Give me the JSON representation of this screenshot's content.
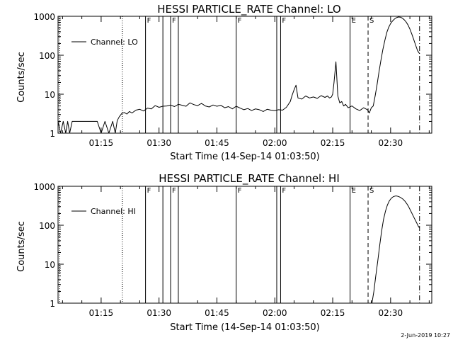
{
  "footer": {
    "timestamp": "2-Jun-2019 10:27"
  },
  "chart_data": [
    {
      "type": "line",
      "title": "HESSI PARTICLE_RATE Channel: LO",
      "xlabel": "Start Time (14-Sep-14 01:03:50)",
      "ylabel": "Counts/sec",
      "yscale": "log",
      "xlim": [
        "01:03:50",
        "02:40:40"
      ],
      "ylim": [
        1,
        1000
      ],
      "xticks": [
        "01:15",
        "01:30",
        "01:45",
        "02:00",
        "02:15",
        "02:30"
      ],
      "yticks": [
        "1",
        "10",
        "100",
        "1000"
      ],
      "legend": {
        "label": "Channel: LO",
        "position": "top-left"
      },
      "grid": false,
      "markers": [
        {
          "time": "01:04:15",
          "style": "dotted",
          "label": ""
        },
        {
          "time": "01:20:30",
          "style": "dotted",
          "label": ""
        },
        {
          "time": "01:26:30",
          "style": "solid",
          "label": "F"
        },
        {
          "time": "01:31:00",
          "style": "solid",
          "label": ""
        },
        {
          "time": "01:33:00",
          "style": "solid",
          "label": "F"
        },
        {
          "time": "01:35:00",
          "style": "solid",
          "label": ""
        },
        {
          "time": "01:50:00",
          "style": "solid",
          "label": "F"
        },
        {
          "time": "02:00:30",
          "style": "solid",
          "label": ""
        },
        {
          "time": "02:01:30",
          "style": "solid",
          "label": "F"
        },
        {
          "time": "02:19:30",
          "style": "solid",
          "label": "E"
        },
        {
          "time": "02:24:10",
          "style": "dashed",
          "label": "S"
        },
        {
          "time": "02:37:30",
          "style": "dash-dot",
          "label": ""
        }
      ],
      "series": [
        {
          "name": "Channel: LO",
          "x": [
            "01:03:50",
            "01:04:30",
            "01:05:10",
            "01:05:50",
            "01:06:20",
            "01:06:50",
            "01:07:30",
            "01:08:10",
            "01:08:50",
            "01:09:30",
            "01:10:10",
            "01:11:00",
            "01:12:00",
            "01:13:00",
            "01:14:00",
            "01:15:00",
            "01:16:00",
            "01:17:00",
            "01:18:00",
            "01:18:40",
            "01:19:10",
            "01:19:40",
            "01:20:20",
            "01:21:00",
            "01:21:40",
            "01:22:20",
            "01:23:00",
            "01:24:00",
            "01:25:00",
            "01:26:00",
            "01:27:00",
            "01:28:00",
            "01:29:00",
            "01:30:00",
            "01:31:00",
            "01:32:00",
            "01:33:00",
            "01:34:00",
            "01:35:00",
            "01:36:00",
            "01:37:00",
            "01:38:00",
            "01:39:00",
            "01:40:00",
            "01:41:00",
            "01:42:00",
            "01:43:00",
            "01:44:00",
            "01:45:00",
            "01:46:00",
            "01:47:00",
            "01:48:00",
            "01:49:00",
            "01:50:00",
            "01:51:00",
            "01:52:00",
            "01:53:00",
            "01:54:00",
            "01:55:00",
            "01:56:00",
            "01:57:00",
            "01:58:00",
            "01:59:00",
            "02:00:00",
            "02:01:00",
            "02:02:00",
            "02:03:00",
            "02:04:00",
            "02:04:30",
            "02:05:00",
            "02:05:30",
            "02:06:00",
            "02:07:00",
            "02:08:00",
            "02:09:00",
            "02:10:00",
            "02:11:00",
            "02:12:00",
            "02:13:00",
            "02:13:40",
            "02:14:10",
            "02:14:40",
            "02:15:00",
            "02:15:20",
            "02:15:50",
            "02:16:20",
            "02:16:50",
            "02:17:20",
            "02:17:50",
            "02:18:20",
            "02:19:00",
            "02:20:00",
            "02:21:00",
            "02:22:00",
            "02:23:00",
            "02:24:00",
            "02:24:30",
            "02:25:00",
            "02:25:30",
            "02:26:00",
            "02:26:30",
            "02:27:00",
            "02:27:30",
            "02:28:00",
            "02:28:30",
            "02:29:00",
            "02:29:30",
            "02:30:00",
            "02:30:30",
            "02:31:00",
            "02:31:30",
            "02:32:00",
            "02:32:30",
            "02:33:00",
            "02:33:30",
            "02:34:00",
            "02:34:30",
            "02:35:00",
            "02:35:30",
            "02:36:00",
            "02:36:30",
            "02:37:00",
            "02:37:30"
          ],
          "y": [
            2,
            1,
            2,
            1,
            2,
            1,
            2,
            2,
            2,
            2,
            2,
            2,
            2,
            2,
            2,
            1,
            2,
            1,
            2,
            1,
            2.1,
            2.6,
            3.2,
            3.4,
            3.1,
            3.6,
            3.3,
            3.9,
            4.1,
            3.7,
            4.4,
            4.2,
            5.1,
            4.6,
            4.9,
            5.0,
            5.3,
            4.8,
            5.5,
            5.2,
            4.9,
            6.0,
            5.4,
            5.1,
            5.8,
            5.0,
            4.7,
            5.3,
            4.9,
            5.2,
            4.5,
            4.8,
            4.2,
            4.9,
            4.4,
            4.0,
            4.3,
            3.8,
            4.2,
            4.0,
            3.6,
            4.1,
            3.9,
            3.8,
            4.0,
            3.9,
            4.6,
            6.5,
            9.5,
            13,
            17,
            8,
            7.5,
            9,
            8,
            8.5,
            7.8,
            9.2,
            8.3,
            9,
            8,
            8.5,
            10,
            20,
            68,
            9,
            6,
            6.5,
            5,
            5.5,
            4.5,
            5,
            4.2,
            3.8,
            4.5,
            4.0,
            3.3,
            4.5,
            5.0,
            9,
            18,
            38,
            75,
            140,
            240,
            380,
            520,
            650,
            760,
            850,
            920,
            960,
            950,
            900,
            820,
            720,
            600,
            470,
            350,
            250,
            180,
            130,
            110
          ]
        }
      ]
    },
    {
      "type": "line",
      "title": "HESSI PARTICLE_RATE Channel: HI",
      "xlabel": "Start Time (14-Sep-14 01:03:50)",
      "ylabel": "Counts/sec",
      "yscale": "log",
      "xlim": [
        "01:03:50",
        "02:40:40"
      ],
      "ylim": [
        1,
        1000
      ],
      "xticks": [
        "01:15",
        "01:30",
        "01:45",
        "02:00",
        "02:15",
        "02:30"
      ],
      "yticks": [
        "1",
        "10",
        "100",
        "1000"
      ],
      "legend": {
        "label": "Channel: HI",
        "position": "top-left"
      },
      "grid": false,
      "markers": [
        {
          "time": "01:04:15",
          "style": "dotted",
          "label": ""
        },
        {
          "time": "01:20:30",
          "style": "dotted",
          "label": ""
        },
        {
          "time": "01:26:30",
          "style": "solid",
          "label": "F"
        },
        {
          "time": "01:31:00",
          "style": "solid",
          "label": ""
        },
        {
          "time": "01:33:00",
          "style": "solid",
          "label": "F"
        },
        {
          "time": "01:35:00",
          "style": "solid",
          "label": ""
        },
        {
          "time": "01:50:00",
          "style": "solid",
          "label": "F"
        },
        {
          "time": "02:00:30",
          "style": "solid",
          "label": ""
        },
        {
          "time": "02:01:30",
          "style": "solid",
          "label": "F"
        },
        {
          "time": "02:19:30",
          "style": "solid",
          "label": "E"
        },
        {
          "time": "02:24:10",
          "style": "dashed",
          "label": "S"
        },
        {
          "time": "02:37:30",
          "style": "dash-dot",
          "label": ""
        }
      ],
      "series": [
        {
          "name": "Channel: HI",
          "x": [
            "02:25:10",
            "02:25:40",
            "02:26:10",
            "02:26:40",
            "02:27:10",
            "02:27:40",
            "02:28:10",
            "02:28:40",
            "02:29:10",
            "02:29:40",
            "02:30:10",
            "02:30:40",
            "02:31:10",
            "02:31:40",
            "02:32:10",
            "02:32:40",
            "02:33:10",
            "02:33:40",
            "02:34:10",
            "02:34:40",
            "02:35:10",
            "02:35:40",
            "02:36:10",
            "02:36:40",
            "02:37:10",
            "02:37:30"
          ],
          "y": [
            1,
            2,
            5,
            12,
            30,
            70,
            140,
            230,
            330,
            420,
            490,
            540,
            560,
            560,
            540,
            510,
            470,
            420,
            360,
            300,
            240,
            190,
            150,
            120,
            95,
            85
          ]
        }
      ]
    }
  ]
}
